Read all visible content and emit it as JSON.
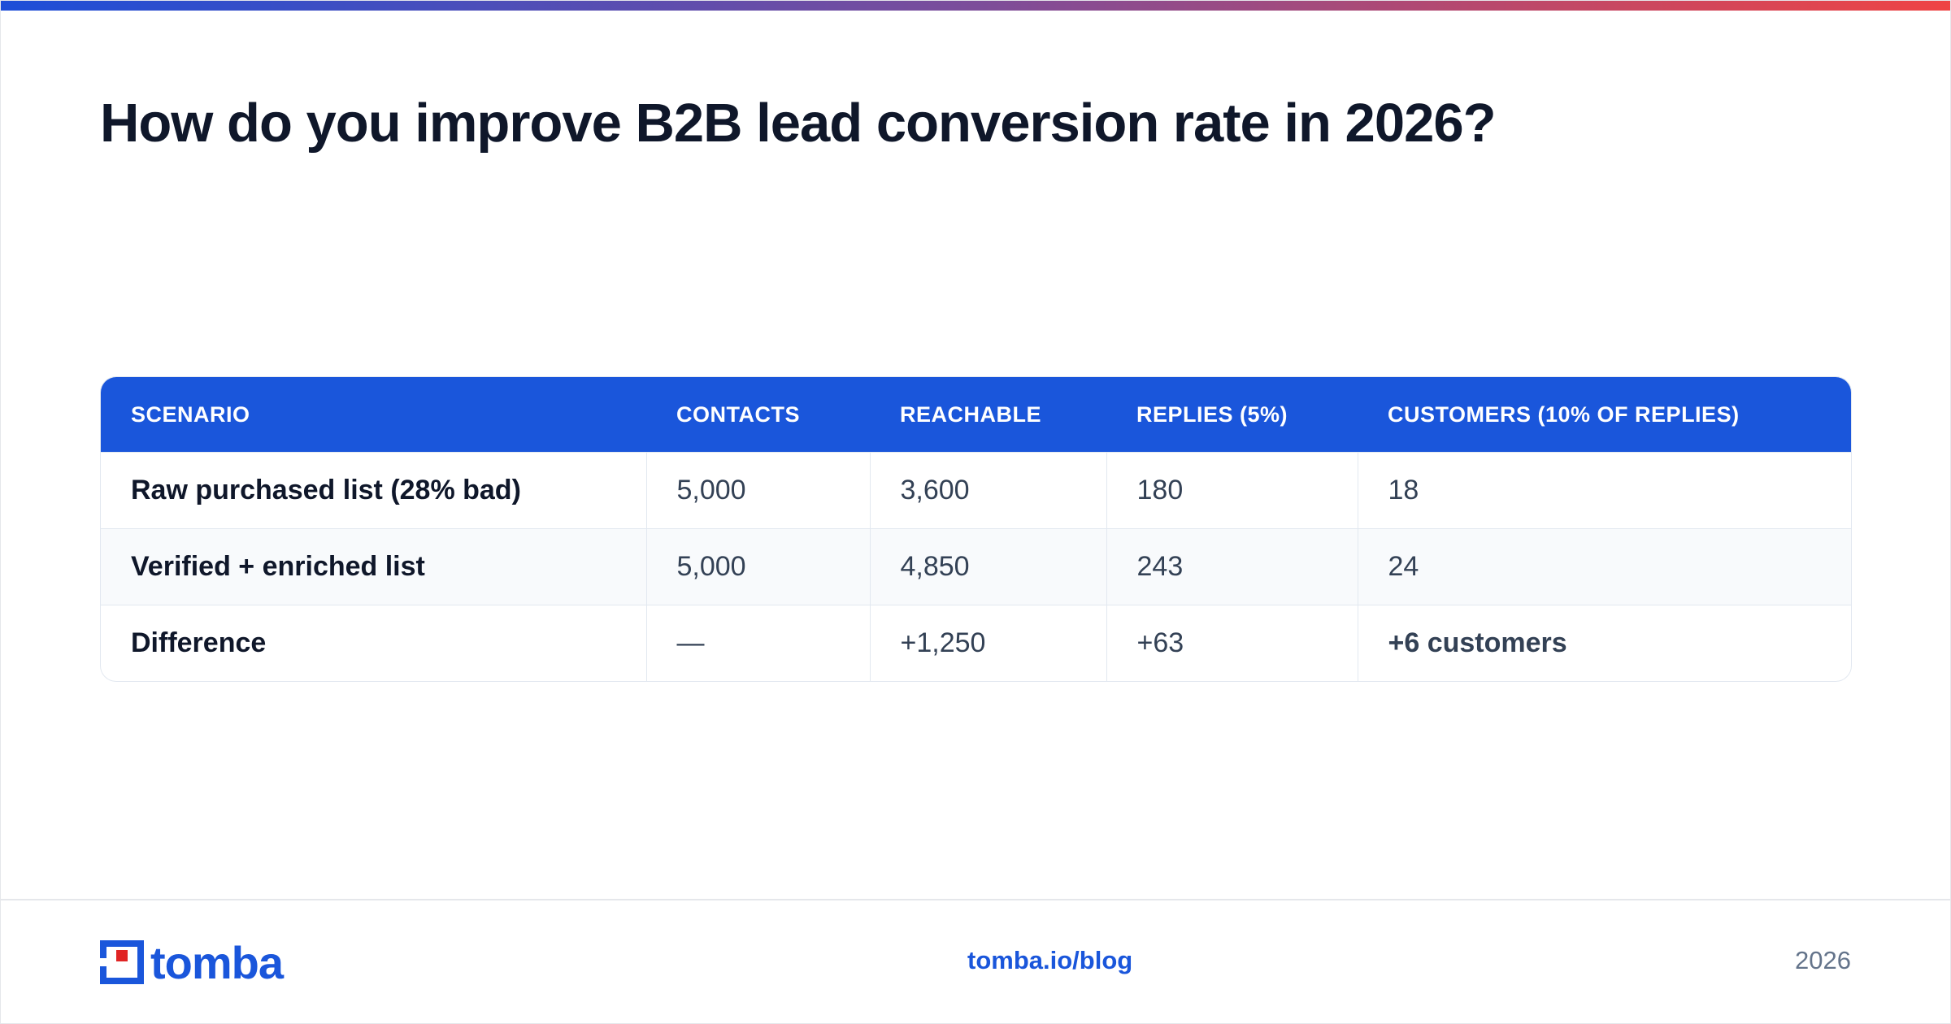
{
  "header": {
    "title": "How do you improve B2B lead conversion rate in 2026?"
  },
  "table": {
    "columns": [
      "SCENARIO",
      "CONTACTS",
      "REACHABLE",
      "REPLIES (5%)",
      "CUSTOMERS (10% OF REPLIES)"
    ],
    "rows": [
      [
        "Raw purchased list (28% bad)",
        "5,000",
        "3,600",
        "180",
        "18"
      ],
      [
        "Verified + enriched list",
        "5,000",
        "4,850",
        "243",
        "24"
      ],
      [
        "Difference",
        "—",
        "+1,250",
        "+63",
        "+6 customers"
      ]
    ]
  },
  "footer": {
    "logo": "tomba",
    "link": "tomba.io/blog",
    "year": "2026"
  }
}
